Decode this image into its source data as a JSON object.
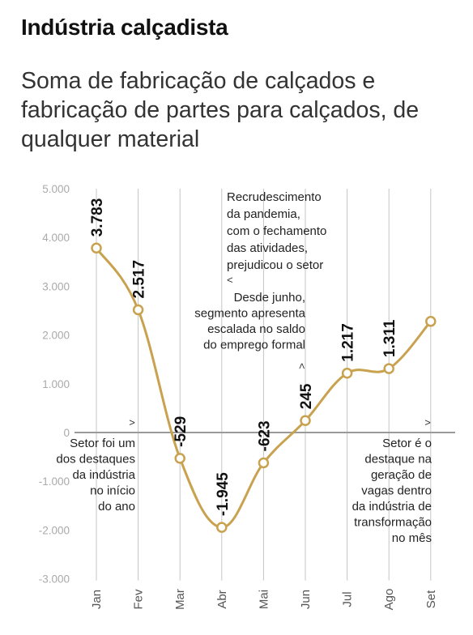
{
  "header": {
    "title": "Indústria calçadista",
    "subtitle": "Soma de fabricação de calçados e fabricação de partes para calçados, de qualquer material"
  },
  "colors": {
    "line": "#c8a24f",
    "grid": "#c4c4c4",
    "zero": "#9a9a9a"
  },
  "chart_data": {
    "type": "line",
    "title": "Indústria calçadista",
    "subtitle": "Soma de fabricação de calçados e fabricação de partes para calçados, de qualquer material",
    "categories": [
      "Jan",
      "Fev",
      "Mar",
      "Abr",
      "Mai",
      "Jun",
      "Jul",
      "Ago",
      "Set"
    ],
    "series": [
      {
        "values": [
          3783,
          2517,
          -529,
          -1945,
          -623,
          245,
          1217,
          1311,
          2279
        ]
      }
    ],
    "data_labels": [
      "3.783",
      "2.517",
      "-529",
      "-1.945",
      "-623",
      "245",
      "1.217",
      "1.311",
      ""
    ],
    "yticks": [
      5000,
      4000,
      3000,
      2000,
      1000,
      0,
      -1000,
      -2000,
      -3000
    ],
    "ytick_labels": [
      "5.000",
      "4.000",
      "3.000",
      "2.000",
      "1.000",
      "0",
      "-1.000",
      "-2.000",
      "-3.000"
    ],
    "ylim": [
      -3000,
      5000
    ],
    "grid": "vertical",
    "annotations": [
      {
        "id": "ann-jan",
        "lines": [
          "Setor foi um",
          "dos destaques",
          "da indústria",
          "no início",
          "do ano"
        ],
        "marker": ">"
      },
      {
        "id": "ann-pandemia",
        "lines": [
          "Recrudescimento",
          "da pandemia,",
          "com o fechamento",
          "das atividades,",
          "prejudicou o setor"
        ],
        "marker": "<"
      },
      {
        "id": "ann-junho",
        "lines": [
          "Desde junho,",
          "segmento apresenta",
          "escalada no saldo",
          "do emprego formal"
        ],
        "marker": ">"
      },
      {
        "id": "ann-set",
        "lines": [
          "Setor é o",
          "destaque na",
          "geração de",
          "vagas dentro",
          "da indústria de",
          "transformação",
          "no mês"
        ],
        "marker": ">"
      }
    ]
  }
}
